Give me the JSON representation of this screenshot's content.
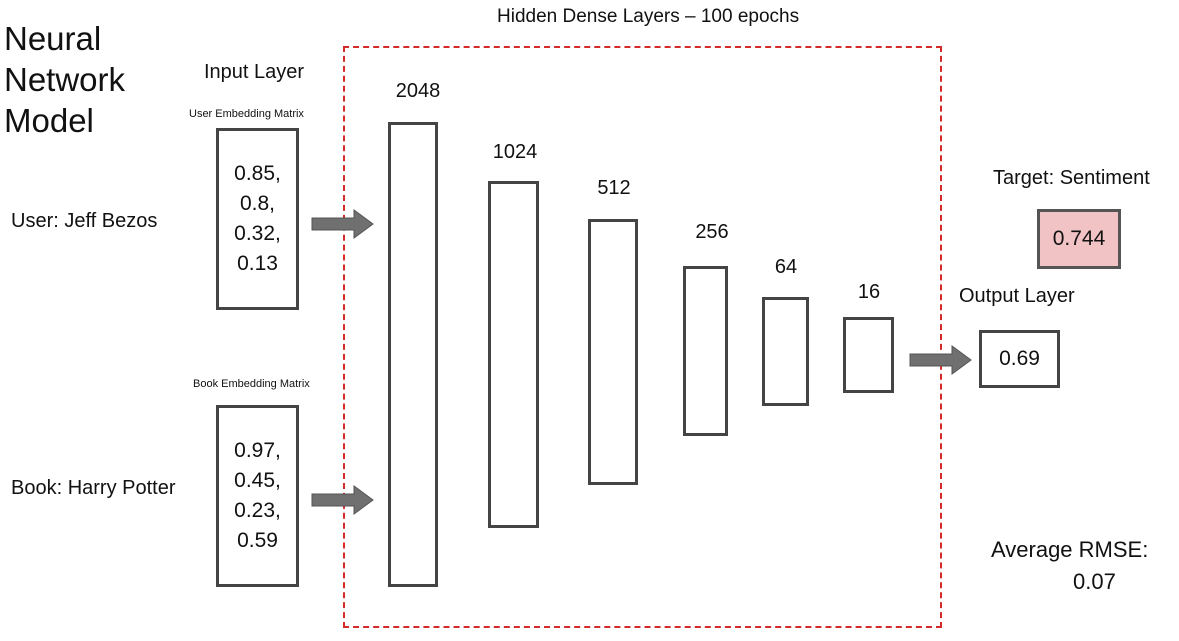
{
  "title": [
    "Neural",
    "Network",
    "Model"
  ],
  "hidden": {
    "label": "Hidden Dense Layers – 100 epochs",
    "layers": [
      {
        "units": "2048"
      },
      {
        "units": "1024"
      },
      {
        "units": "512"
      },
      {
        "units": "256"
      },
      {
        "units": "64"
      },
      {
        "units": "16"
      }
    ]
  },
  "input": {
    "label": "Input Layer",
    "user": {
      "label": "User: Jeff Bezos",
      "matrix_label": "User Embedding Matrix",
      "values": [
        "0.85,",
        "0.8,",
        "0.32,",
        "0.13"
      ]
    },
    "book": {
      "label": "Book: Harry Potter",
      "matrix_label": "Book Embedding Matrix",
      "values": [
        "0.97,",
        "0.45,",
        "0.23,",
        "0.59"
      ]
    }
  },
  "target": {
    "label": "Target: Sentiment",
    "value": "0.744"
  },
  "output": {
    "label": "Output Layer",
    "value": "0.69"
  },
  "rmse": {
    "label": "Average RMSE:",
    "value": "0.07"
  },
  "colors": {
    "dashed_border": "#d42a2a",
    "target_fill": "#f2c3c5",
    "arrow": "#707070"
  }
}
